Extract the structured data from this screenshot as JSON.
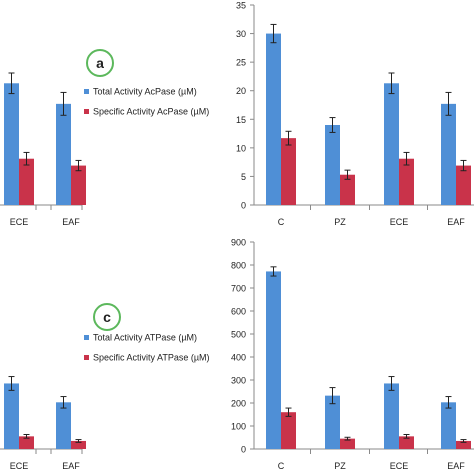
{
  "colors": {
    "blue": "#4f8fd6",
    "red": "#c9334a",
    "axis": "#8a8a8a",
    "circle": "#5cb85c"
  },
  "chart_data": [
    {
      "type": "bar",
      "panel": "top-left",
      "categories": [
        "ECE",
        "EAF"
      ],
      "series": [
        {
          "name": "Total Activity AcPase (µM)",
          "values": [
            21.3,
            17.7
          ],
          "errors": [
            1.8,
            2.0
          ]
        },
        {
          "name": "Specific Activity AcPase (µM)",
          "values": [
            8.1,
            6.9
          ],
          "errors": [
            1.1,
            0.9
          ]
        }
      ],
      "ylim": [
        0,
        35
      ],
      "badge": "a",
      "legend": "upper-right"
    },
    {
      "type": "bar",
      "panel": "top-right",
      "categories": [
        "C",
        "PZ",
        "ECE",
        "EAF"
      ],
      "series": [
        {
          "name": "Total Activity AcPase (µM)",
          "values": [
            30.0,
            14.0,
            21.3,
            17.7
          ],
          "errors": [
            1.6,
            1.3,
            1.8,
            2.0
          ]
        },
        {
          "name": "Specific Activity AcPase (µM)",
          "values": [
            11.7,
            5.3,
            8.1,
            6.9
          ],
          "errors": [
            1.2,
            0.8,
            1.1,
            0.9
          ]
        }
      ],
      "ylim": [
        0,
        35
      ],
      "yticks": [
        0,
        5,
        10,
        15,
        20,
        25,
        30,
        35
      ]
    },
    {
      "type": "bar",
      "panel": "bottom-left",
      "categories": [
        "ECE",
        "EAF"
      ],
      "series": [
        {
          "name": "Total Activity ATPase (µM)",
          "values": [
            285,
            203
          ],
          "errors": [
            30,
            25
          ]
        },
        {
          "name": "Specific Activity ATPase (µM)",
          "values": [
            55,
            35
          ],
          "errors": [
            8,
            6
          ]
        }
      ],
      "ylim": [
        0,
        900
      ],
      "badge": "c",
      "legend": "upper-right"
    },
    {
      "type": "bar",
      "panel": "bottom-right",
      "categories": [
        "C",
        "PZ",
        "ECE",
        "EAF"
      ],
      "series": [
        {
          "name": "Total Activity ATPase (µM)",
          "values": [
            772,
            232,
            285,
            203
          ],
          "errors": [
            20,
            35,
            30,
            25
          ]
        },
        {
          "name": "Specific Activity ATPase (µM)",
          "values": [
            160,
            45,
            55,
            35
          ],
          "errors": [
            18,
            6,
            8,
            6
          ]
        }
      ],
      "ylim": [
        0,
        900
      ],
      "yticks": [
        0,
        100,
        200,
        300,
        400,
        500,
        600,
        700,
        800,
        900
      ]
    }
  ]
}
